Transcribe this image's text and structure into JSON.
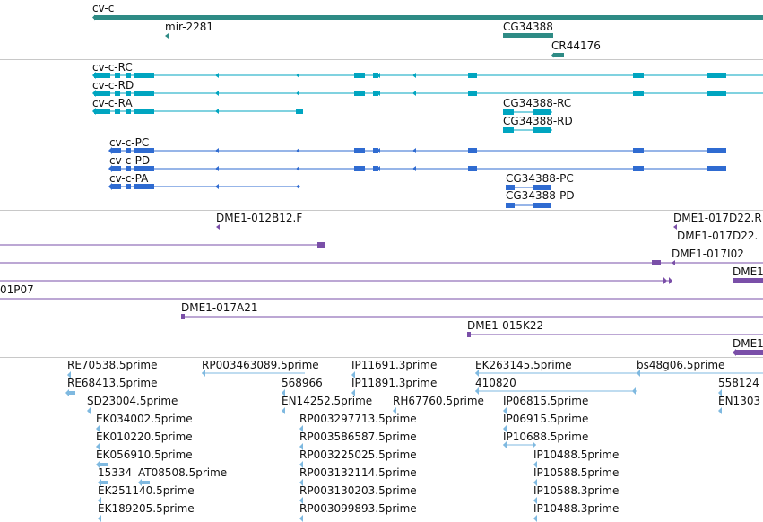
{
  "colors": {
    "gene": "#2e8b85",
    "transcript": "#00a5c0",
    "protein": "#2f6bd1",
    "clone": "#7a4fa8",
    "est": "#7fb9e0"
  },
  "gene_track": {
    "labels": [
      "cv-c",
      "mir-2281",
      "CG34388",
      "CR44176"
    ]
  },
  "transcript_track": {
    "labels": [
      "cv-c-RC",
      "cv-c-RD",
      "cv-c-RA",
      "CG34388-RC",
      "CG34388-RD"
    ]
  },
  "protein_track": {
    "labels": [
      "cv-c-PC",
      "cv-c-PD",
      "cv-c-PA",
      "CG34388-PC",
      "CG34388-PD"
    ]
  },
  "clone_track": {
    "labels": [
      "DME1-012B12.F",
      "DME1-017D22.R",
      "DME1-017D22.",
      "DME1-017I02",
      "DME1",
      "01P07",
      "DME1-017A21",
      "DME1-015K22",
      "DME1"
    ]
  },
  "est_track": {
    "labels": [
      "RE70538.5prime",
      "RE68413.5prime",
      "SD23004.5prime",
      "EK034002.5prime",
      "EK010220.5prime",
      "EK056910.5prime",
      "15334",
      "AT08508.5prime",
      "EK251140.5prime",
      "EK189205.5prime",
      "RP003463089.5prime",
      "568966",
      "EN14252.5prime",
      "RP003297713.5prime",
      "RP003586587.5prime",
      "RP003225025.5prime",
      "RP003132114.5prime",
      "RP003130203.5prime",
      "RP003099893.5prime",
      "IP11691.3prime",
      "IP11891.3prime",
      "RH67760.5prime",
      "EK263145.5prime",
      "410820",
      "IP06815.5prime",
      "IP06915.5prime",
      "IP10688.5prime",
      "IP10488.5prime",
      "IP10588.5prime",
      "IP10588.3prime",
      "IP10488.3prime",
      "bs48g06.5prime",
      "558124",
      "EN1303"
    ]
  }
}
